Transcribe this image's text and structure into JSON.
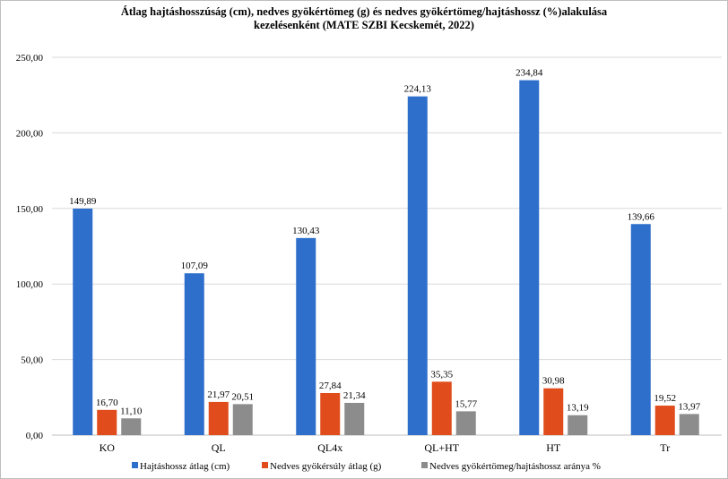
{
  "chart_data": {
    "type": "bar",
    "title_line1": "Átlag hajtáshosszúság  (cm),  nedves gyökértömeg (g) és nedves gyökértömeg/hajtáshossz  (%)alakulása",
    "title_line2": "kezelésenként (MATE SZBI Kecskemét, 2022)",
    "xlabel": "",
    "ylabel": "",
    "ylim": [
      0,
      250
    ],
    "yticks": [
      "0,00",
      "50,00",
      "100,00",
      "150,00",
      "200,00",
      "250,00"
    ],
    "grid": true,
    "legend_position": "bottom",
    "categories": [
      "KO",
      "QL",
      "QL4x",
      "QL+HT",
      "HT",
      "Tr"
    ],
    "series": [
      {
        "name": "Hajtáshossz átlag (cm)",
        "color": "#2e6fcc",
        "values": [
          149.89,
          107.09,
          130.43,
          224.13,
          234.84,
          139.66
        ],
        "labels": [
          "149,89",
          "107,09",
          "130,43",
          "224,13",
          "234,84",
          "139,66"
        ]
      },
      {
        "name": "Nedves gyökérsúly átlag (g)",
        "color": "#e04c1c",
        "values": [
          16.7,
          21.97,
          27.84,
          35.35,
          30.98,
          19.52
        ],
        "labels": [
          "16,70",
          "21,97",
          "27,84",
          "35,35",
          "30,98",
          "19,52"
        ]
      },
      {
        "name": "Nedves gyökértömeg/hajtáshossz aránya %",
        "color": "#8c8c8c",
        "values": [
          11.1,
          20.51,
          21.34,
          15.77,
          13.19,
          13.97
        ],
        "labels": [
          "11,10",
          "20,51",
          "21,34",
          "15,77",
          "13,19",
          "13,97"
        ]
      }
    ]
  }
}
